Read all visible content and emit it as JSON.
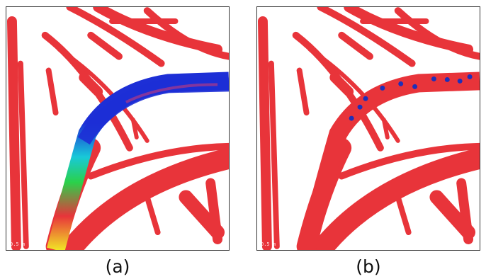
{
  "panels": [
    {
      "id": "a",
      "caption": "(a)",
      "watermark": "0.5 m"
    },
    {
      "id": "b",
      "caption": "(b)",
      "watermark": "0.5 m"
    }
  ],
  "colors": {
    "point_cloud": "#e8343a",
    "highlight_far": "#1d2fd6",
    "highlight_mid": "#18c9d8",
    "highlight_near": "#f1e426",
    "keypoint": "#1f2fb8"
  }
}
